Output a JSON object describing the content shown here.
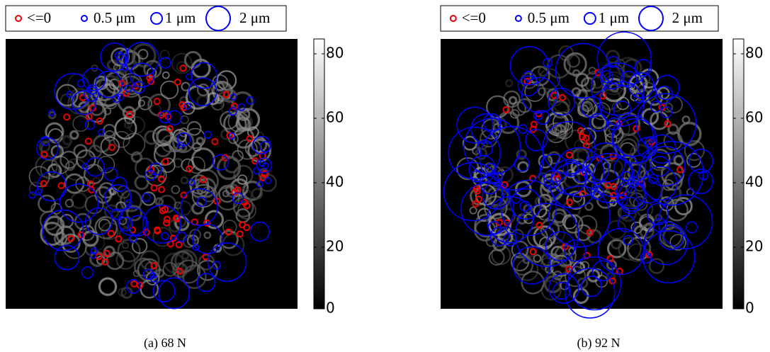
{
  "panels": [
    {
      "legend": [
        "<=0",
        "0.5 μm",
        "1 μm",
        "2 μm"
      ],
      "colorbar_ticks": [
        "80",
        "60",
        "40",
        "20",
        "0"
      ],
      "caption": "(a) 68 N"
    },
    {
      "legend": [
        "<=0",
        "0.5 μm",
        "1 μm",
        "2 μm"
      ],
      "colorbar_ticks": [
        "80",
        "60",
        "40",
        "20",
        "0"
      ],
      "caption": "(b) 92 N"
    }
  ]
}
